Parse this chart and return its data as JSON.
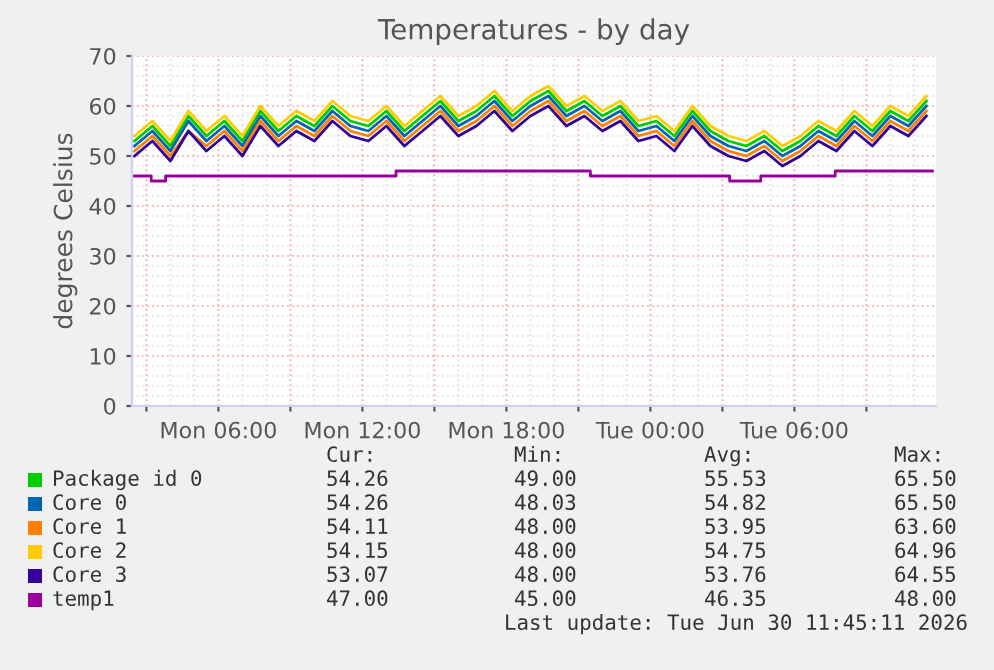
{
  "chart_data": {
    "type": "line",
    "title": "Temperatures - by day",
    "ylabel": "degrees Celsius",
    "x": [
      "2026-06-29T02:30",
      "2026-06-29T03:15",
      "2026-06-29T04:00",
      "2026-06-29T04:45",
      "2026-06-29T05:30",
      "2026-06-29T06:15",
      "2026-06-29T07:00",
      "2026-06-29T07:45",
      "2026-06-29T08:30",
      "2026-06-29T09:15",
      "2026-06-29T10:00",
      "2026-06-29T10:45",
      "2026-06-29T11:30",
      "2026-06-29T12:15",
      "2026-06-29T13:00",
      "2026-06-29T13:45",
      "2026-06-29T14:30",
      "2026-06-29T15:15",
      "2026-06-29T16:00",
      "2026-06-29T16:45",
      "2026-06-29T17:30",
      "2026-06-29T18:15",
      "2026-06-29T19:00",
      "2026-06-29T19:45",
      "2026-06-29T20:30",
      "2026-06-29T21:15",
      "2026-06-29T22:00",
      "2026-06-29T22:45",
      "2026-06-29T23:30",
      "2026-06-30T00:15",
      "2026-06-30T01:00",
      "2026-06-30T01:45",
      "2026-06-30T02:30",
      "2026-06-30T03:15",
      "2026-06-30T04:00",
      "2026-06-30T04:45",
      "2026-06-30T05:30",
      "2026-06-30T06:15",
      "2026-06-30T07:00",
      "2026-06-30T07:45",
      "2026-06-30T08:30",
      "2026-06-30T09:15",
      "2026-06-30T10:00",
      "2026-06-30T10:45",
      "2026-06-30T11:30"
    ],
    "series": [
      {
        "name": "Package id 0",
        "color": "#00cc00",
        "values": [
          53,
          56,
          52,
          58,
          54,
          57,
          53,
          59,
          55,
          58,
          56,
          60,
          57,
          56,
          59,
          55,
          58,
          61,
          57,
          59,
          62,
          58,
          61,
          63,
          59,
          61,
          58,
          60,
          56,
          57,
          54,
          59,
          55,
          53,
          52,
          54,
          51,
          53,
          56,
          54,
          58,
          55,
          59,
          57,
          61
        ]
      },
      {
        "name": "Core 0",
        "color": "#0066b3",
        "values": [
          52,
          55,
          51,
          57,
          53,
          56,
          52,
          58,
          54,
          57,
          55,
          59,
          56,
          55,
          58,
          54,
          57,
          60,
          56,
          58,
          61,
          57,
          60,
          62,
          58,
          60,
          57,
          59,
          55,
          56,
          53,
          58,
          54,
          52,
          51,
          53,
          50,
          52,
          55,
          53,
          57,
          54,
          58,
          56,
          60
        ]
      },
      {
        "name": "Core 1",
        "color": "#ff8000",
        "values": [
          51,
          54,
          50,
          55,
          52,
          55,
          51,
          57,
          53,
          56,
          54,
          58,
          55,
          54,
          57,
          53,
          56,
          59,
          55,
          57,
          60,
          56,
          59,
          61,
          57,
          59,
          56,
          58,
          54,
          55,
          52,
          57,
          53,
          51,
          50,
          52,
          49,
          51,
          54,
          52,
          56,
          53,
          57,
          55,
          59
        ]
      },
      {
        "name": "Core 2",
        "color": "#ffcc00",
        "values": [
          54,
          57,
          53,
          59,
          55,
          58,
          54,
          60,
          56,
          59,
          57,
          61,
          58,
          57,
          60,
          56,
          59,
          62,
          58,
          60,
          63,
          59,
          62,
          64,
          60,
          62,
          59,
          61,
          57,
          58,
          55,
          60,
          56,
          54,
          53,
          55,
          52,
          54,
          57,
          55,
          59,
          56,
          60,
          58,
          62
        ]
      },
      {
        "name": "Core 3",
        "color": "#330099",
        "values": [
          50,
          53,
          49,
          55,
          51,
          54,
          50,
          56,
          52,
          55,
          53,
          57,
          54,
          53,
          56,
          52,
          55,
          58,
          54,
          56,
          59,
          55,
          58,
          60,
          56,
          58,
          55,
          57,
          53,
          54,
          51,
          56,
          52,
          50,
          49,
          51,
          48,
          50,
          53,
          51,
          55,
          52,
          56,
          54,
          58
        ]
      },
      {
        "name": "temp1",
        "color": "#990099",
        "type": "step",
        "x": [
          "2026-06-29T02:24",
          "2026-06-29T03:12",
          "2026-06-29T03:48",
          "2026-06-29T13:24",
          "2026-06-29T21:30",
          "2026-06-30T03:18",
          "2026-06-30T04:36",
          "2026-06-30T07:42",
          "2026-06-30T11:45"
        ],
        "values": [
          46,
          45,
          46,
          47,
          46,
          45,
          46,
          47,
          47
        ]
      }
    ],
    "xlim": [
      "2026-06-29T02:24",
      "2026-06-30T11:54"
    ],
    "ylim": [
      0,
      70
    ],
    "xticks": [
      {
        "value": "2026-06-29T03:00",
        "label": null
      },
      {
        "value": "2026-06-29T06:00",
        "label": "Mon 06:00"
      },
      {
        "value": "2026-06-29T09:00",
        "label": null
      },
      {
        "value": "2026-06-29T12:00",
        "label": "Mon 12:00"
      },
      {
        "value": "2026-06-29T15:00",
        "label": null
      },
      {
        "value": "2026-06-29T18:00",
        "label": "Mon 18:00"
      },
      {
        "value": "2026-06-29T21:00",
        "label": null
      },
      {
        "value": "2026-06-30T00:00",
        "label": "Tue 00:00"
      },
      {
        "value": "2026-06-30T03:00",
        "label": null
      },
      {
        "value": "2026-06-30T06:00",
        "label": "Tue 06:00"
      },
      {
        "value": "2026-06-30T09:00",
        "label": null
      }
    ],
    "yticks": [
      0,
      10,
      20,
      30,
      40,
      50,
      60,
      70
    ],
    "grid": true,
    "legend": "bottom",
    "annotations": [
      "Cur:",
      "Min:",
      "Avg:",
      "Max:",
      "54.26",
      "49.00",
      "55.53",
      "65.50",
      "54.26",
      "48.03",
      "54.82",
      "65.50",
      "54.11",
      "48.00",
      "53.95",
      "63.60",
      "54.15",
      "48.00",
      "54.75",
      "64.96",
      "53.07",
      "48.00",
      "53.76",
      "64.55",
      "47.00",
      "45.00",
      "46.35",
      "48.00",
      "Last update: Tue Jun 30 11:45:11 2026"
    ]
  }
}
